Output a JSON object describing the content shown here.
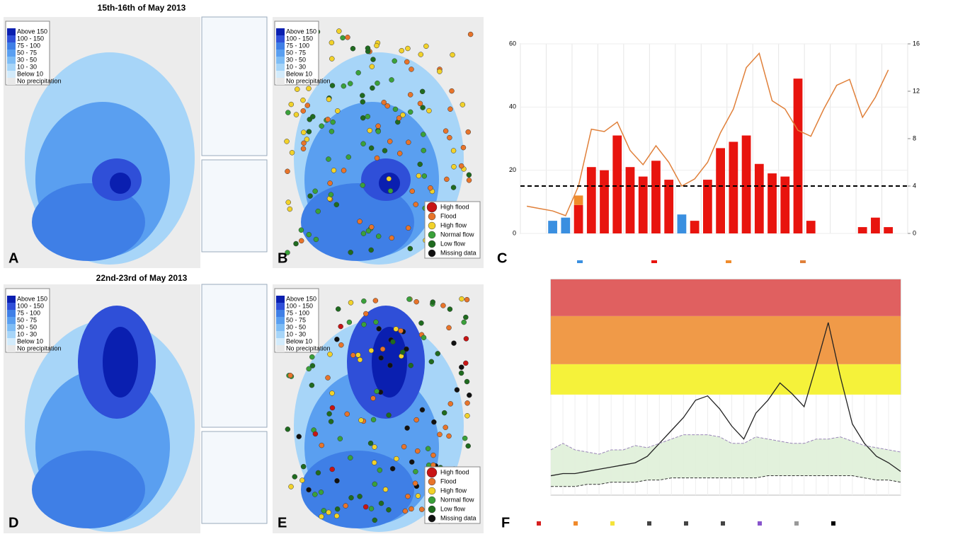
{
  "titles": {
    "top": "15th-16th of May 2013",
    "bottom": "22nd-23rd of May 2013"
  },
  "panel_labels": [
    "A",
    "B",
    "C",
    "D",
    "E",
    "F"
  ],
  "precip_legend": {
    "labels": [
      "Above 150",
      "100 - 150",
      "75 - 100",
      "50 - 75",
      "30 - 50",
      "10 - 30",
      "Below 10",
      "No precipitation"
    ],
    "colors": [
      "#0a1fb0",
      "#2f4fd8",
      "#3f7fe6",
      "#5a9ff0",
      "#7fbdf5",
      "#a7d5f8",
      "#d3ebfb",
      "#e8e8e8"
    ]
  },
  "flood_legend": {
    "labels": [
      "High flood",
      "Flood",
      "High flow",
      "Normal flow",
      "Low flow",
      "Missing data"
    ],
    "colors": [
      "#c81414",
      "#e8742a",
      "#f2d22a",
      "#3aa13a",
      "#1f6b1f",
      "#111111"
    ]
  },
  "chart_c": {
    "type": "bar",
    "ylim": [
      0,
      60
    ],
    "yticks": [
      0,
      20,
      40,
      60
    ],
    "y2lim": [
      0,
      16
    ],
    "y2ticks": [
      0,
      4,
      8,
      12,
      16
    ],
    "threshold": 15,
    "categories": [
      null,
      null,
      null,
      null,
      null,
      null,
      null,
      null,
      null,
      null,
      null,
      null,
      null,
      null,
      null,
      null,
      null,
      null,
      null,
      null,
      null,
      null,
      null,
      null,
      null,
      null,
      null,
      null,
      null,
      null
    ],
    "series": [
      {
        "color": "#3a8fe0",
        "values": [
          null,
          null,
          4,
          5,
          null,
          null,
          null,
          null,
          null,
          null,
          null,
          null,
          6,
          null,
          null,
          null,
          null,
          null,
          null,
          null,
          null,
          null,
          null,
          null,
          null,
          null,
          null,
          null,
          null,
          null
        ]
      },
      {
        "color": "#e8140e",
        "values": [
          null,
          null,
          null,
          null,
          9,
          21,
          20,
          31,
          21,
          18,
          23,
          17,
          null,
          4,
          17,
          27,
          29,
          31,
          22,
          19,
          18,
          49,
          4,
          null,
          null,
          null,
          2,
          5,
          2,
          null
        ]
      },
      {
        "color": "#f08c2c",
        "values": [
          null,
          null,
          null,
          null,
          3,
          null,
          null,
          null,
          null,
          null,
          null,
          null,
          null,
          null,
          null,
          null,
          null,
          null,
          null,
          null,
          null,
          null,
          null,
          null,
          null,
          null,
          null,
          null,
          null,
          null
        ]
      },
      {
        "type": "line",
        "axis": "y2",
        "color": "#e0803a",
        "values": [
          2.3,
          2.1,
          1.9,
          1.5,
          4.0,
          8.8,
          8.6,
          9.4,
          7.0,
          5.8,
          7.4,
          6.0,
          4.0,
          4.6,
          6.0,
          8.5,
          10.5,
          14.0,
          15.2,
          11.2,
          10.5,
          8.7,
          8.2,
          10.5,
          12.5,
          13.0,
          9.8,
          11.5,
          13.8,
          null
        ]
      }
    ]
  },
  "chart_f": {
    "type": "line",
    "ylim": [
      0,
      100
    ],
    "bands": [
      {
        "from": 46.6,
        "to": 60.7,
        "color": "#f5f23a"
      },
      {
        "from": 60.7,
        "to": 83,
        "color": "#f09a48"
      },
      {
        "from": 83,
        "to": 100,
        "color": "#e06060"
      }
    ],
    "series": [
      {
        "color": "#222222",
        "values": [
          9,
          10,
          10,
          11,
          12,
          13,
          14,
          15,
          18,
          24,
          30,
          36,
          44,
          46,
          40,
          32,
          26,
          38,
          44,
          52,
          47,
          41,
          60,
          80,
          55,
          33,
          24,
          18,
          15,
          11
        ]
      },
      {
        "color": "#9a86b8",
        "values": [
          21,
          24,
          21,
          20,
          19,
          21,
          21,
          23,
          22,
          24,
          26,
          28,
          28,
          28,
          27,
          24,
          24,
          27,
          26,
          25,
          24,
          24,
          26,
          26,
          27,
          25,
          23,
          22,
          21,
          20
        ]
      },
      {
        "color": "#333333",
        "values": [
          4,
          4,
          4,
          5,
          5,
          6,
          6,
          6,
          7,
          7,
          8,
          8,
          8,
          8,
          8,
          8,
          8,
          8,
          9,
          9,
          9,
          9,
          9,
          9,
          9,
          9,
          8,
          7,
          7,
          6
        ]
      }
    ]
  }
}
